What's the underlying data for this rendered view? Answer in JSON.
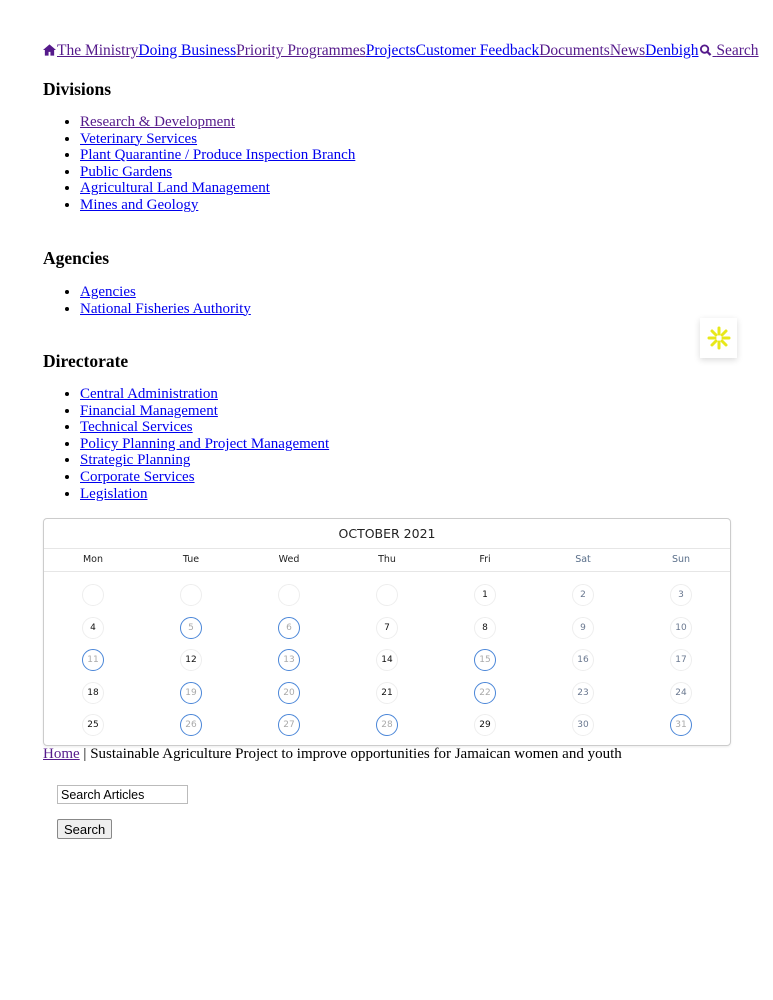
{
  "nav": {
    "items": [
      {
        "label": "The Ministry",
        "visited": true,
        "icon": "home-icon"
      },
      {
        "label": "Doing Business",
        "visited": false
      },
      {
        "label": "Priority Programmes",
        "visited": true
      },
      {
        "label": "Projects",
        "visited": false
      },
      {
        "label": "Customer Feedback",
        "visited": false
      },
      {
        "label": "Documents",
        "visited": true
      },
      {
        "label": "News",
        "visited": true
      },
      {
        "label": "Denbigh",
        "visited": false
      },
      {
        "label": "Search",
        "visited": true,
        "icon": "search-icon"
      }
    ]
  },
  "divisions": {
    "heading": "Divisions",
    "items": [
      "Research & Development",
      "Veterinary Services",
      "Plant Quarantine / Produce Inspection Branch",
      "Public Gardens",
      "Agricultural Land Management",
      "Mines and Geology"
    ]
  },
  "agencies": {
    "heading": "Agencies",
    "items": [
      "Agencies",
      "National Fisheries Authority"
    ]
  },
  "directorate": {
    "heading": "Directorate",
    "items": [
      "Central Administration",
      "Financial Management",
      "Technical Services",
      "Policy Planning and Project Management",
      "Strategic Planning",
      "Corporate Services",
      "Legislation"
    ]
  },
  "widget": {
    "icon": "accessibility-asterisk-icon",
    "color": "#e8e81a"
  },
  "calendar": {
    "title": "OCTOBER 2021",
    "weekdays": [
      "Mon",
      "Tue",
      "Wed",
      "Thu",
      "Fri",
      "Sat",
      "Sun"
    ],
    "weeks": [
      [
        null,
        null,
        null,
        null,
        1,
        2,
        3
      ],
      [
        4,
        5,
        6,
        7,
        8,
        9,
        10
      ],
      [
        11,
        12,
        13,
        14,
        15,
        16,
        17
      ],
      [
        18,
        19,
        20,
        21,
        22,
        23,
        24
      ],
      [
        25,
        26,
        27,
        28,
        29,
        30,
        31
      ]
    ],
    "highlighted": [
      5,
      6,
      11,
      13,
      15,
      19,
      20,
      22,
      26,
      27,
      28,
      31
    ],
    "accent": "#4a86d8"
  },
  "breadcrumb": {
    "home": "Home",
    "separator": " | ",
    "current": "Sustainable Agriculture Project to improve opportunities for Jamaican women and youth"
  },
  "search": {
    "value": "Search Articles",
    "button": "Search"
  }
}
